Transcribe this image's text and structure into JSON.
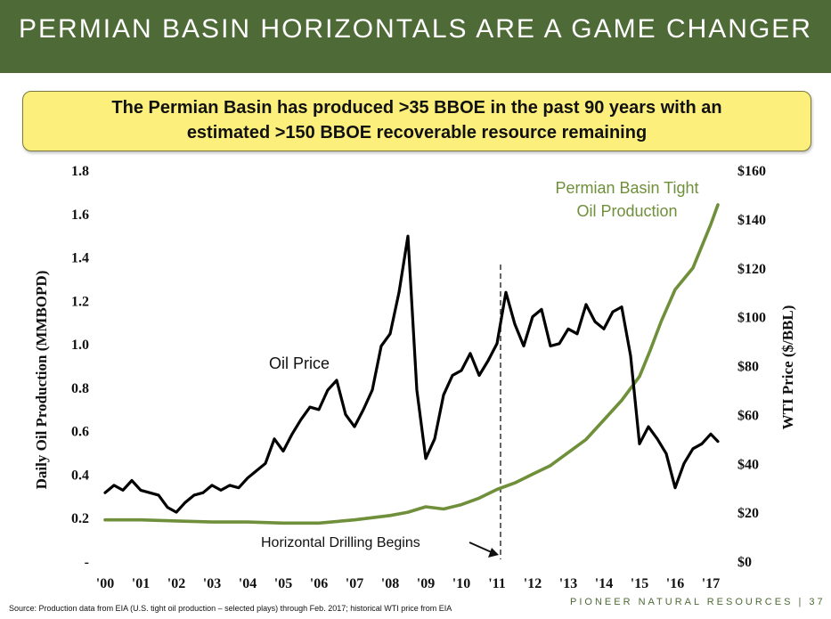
{
  "header": {
    "title": "PERMIAN BASIN HORIZONTALS ARE A GAME CHANGER"
  },
  "callout": {
    "line1": "The Permian Basin has produced >35 BBOE in the past 90 years with an",
    "line2": "estimated >150 BBOE recoverable resource remaining"
  },
  "footer": {
    "source": "Source: Production data from EIA (U.S. tight oil production – selected plays) through Feb. 2017; historical WTI price from EIA",
    "brand": "PIONEER NATURAL RESOURCES | 37"
  },
  "chart_data": {
    "type": "line",
    "ylabel": "Daily Oil Production (MMBOPD)",
    "y2label": "WTI Price ($/BBL)",
    "x_ticks": [
      "'00",
      "'01",
      "'02",
      "'03",
      "'04",
      "'05",
      "'06",
      "'07",
      "'08",
      "'09",
      "'10",
      "'11",
      "'12",
      "'13",
      "'14",
      "'15",
      "'16",
      "'17"
    ],
    "y_ticks": [
      "-",
      "0.2",
      "0.4",
      "0.6",
      "0.8",
      "1.0",
      "1.2",
      "1.4",
      "1.6",
      "1.8"
    ],
    "y2_ticks": [
      "$0",
      "$20",
      "$40",
      "$60",
      "$80",
      "$100",
      "$120",
      "$140",
      "$160"
    ],
    "ylim": [
      0,
      1.8
    ],
    "y2lim": [
      0,
      160
    ],
    "xlim": [
      2000.0,
      2017.25
    ],
    "annotations": {
      "oil_price": "Oil Price",
      "tight_oil": [
        "Permian Basin Tight",
        "Oil Production"
      ],
      "drilling": "Horizontal Drilling Begins"
    },
    "drilling_start_x": 2011.1,
    "series": [
      {
        "name": "Permian Basin Tight Oil Production",
        "axis": "left",
        "color": "#6f8f3a",
        "points": [
          [
            2000.0,
            0.19
          ],
          [
            2001.0,
            0.19
          ],
          [
            2002.0,
            0.185
          ],
          [
            2003.0,
            0.18
          ],
          [
            2004.0,
            0.18
          ],
          [
            2005.0,
            0.175
          ],
          [
            2006.0,
            0.175
          ],
          [
            2007.0,
            0.19
          ],
          [
            2008.0,
            0.21
          ],
          [
            2008.5,
            0.225
          ],
          [
            2009.0,
            0.25
          ],
          [
            2009.5,
            0.24
          ],
          [
            2010.0,
            0.26
          ],
          [
            2010.5,
            0.29
          ],
          [
            2011.0,
            0.33
          ],
          [
            2011.5,
            0.36
          ],
          [
            2012.0,
            0.4
          ],
          [
            2012.5,
            0.44
          ],
          [
            2013.0,
            0.5
          ],
          [
            2013.5,
            0.56
          ],
          [
            2014.0,
            0.65
          ],
          [
            2014.5,
            0.74
          ],
          [
            2015.0,
            0.85
          ],
          [
            2015.3,
            0.97
          ],
          [
            2015.6,
            1.1
          ],
          [
            2016.0,
            1.25
          ],
          [
            2016.5,
            1.35
          ],
          [
            2017.0,
            1.55
          ],
          [
            2017.2,
            1.64
          ]
        ]
      },
      {
        "name": "Oil Price",
        "axis": "right",
        "color": "#000000",
        "points": [
          [
            2000.0,
            28
          ],
          [
            2000.25,
            31
          ],
          [
            2000.5,
            29
          ],
          [
            2000.75,
            33
          ],
          [
            2001.0,
            29
          ],
          [
            2001.25,
            28
          ],
          [
            2001.5,
            27
          ],
          [
            2001.75,
            22
          ],
          [
            2002.0,
            20
          ],
          [
            2002.25,
            24
          ],
          [
            2002.5,
            27
          ],
          [
            2002.75,
            28
          ],
          [
            2003.0,
            31
          ],
          [
            2003.25,
            29
          ],
          [
            2003.5,
            31
          ],
          [
            2003.75,
            30
          ],
          [
            2004.0,
            34
          ],
          [
            2004.25,
            37
          ],
          [
            2004.5,
            40
          ],
          [
            2004.75,
            50
          ],
          [
            2005.0,
            45
          ],
          [
            2005.25,
            52
          ],
          [
            2005.5,
            58
          ],
          [
            2005.75,
            63
          ],
          [
            2006.0,
            62
          ],
          [
            2006.25,
            70
          ],
          [
            2006.5,
            74
          ],
          [
            2006.75,
            60
          ],
          [
            2007.0,
            55
          ],
          [
            2007.25,
            62
          ],
          [
            2007.5,
            70
          ],
          [
            2007.75,
            88
          ],
          [
            2008.0,
            93
          ],
          [
            2008.25,
            110
          ],
          [
            2008.5,
            133
          ],
          [
            2008.75,
            70
          ],
          [
            2009.0,
            42
          ],
          [
            2009.25,
            50
          ],
          [
            2009.5,
            68
          ],
          [
            2009.75,
            76
          ],
          [
            2010.0,
            78
          ],
          [
            2010.25,
            85
          ],
          [
            2010.5,
            76
          ],
          [
            2010.75,
            82
          ],
          [
            2011.0,
            89
          ],
          [
            2011.25,
            110
          ],
          [
            2011.5,
            97
          ],
          [
            2011.75,
            88
          ],
          [
            2012.0,
            100
          ],
          [
            2012.25,
            103
          ],
          [
            2012.5,
            88
          ],
          [
            2012.75,
            89
          ],
          [
            2013.0,
            95
          ],
          [
            2013.25,
            93
          ],
          [
            2013.5,
            105
          ],
          [
            2013.75,
            98
          ],
          [
            2014.0,
            95
          ],
          [
            2014.25,
            102
          ],
          [
            2014.5,
            104
          ],
          [
            2014.75,
            84
          ],
          [
            2015.0,
            48
          ],
          [
            2015.25,
            55
          ],
          [
            2015.5,
            50
          ],
          [
            2015.75,
            44
          ],
          [
            2016.0,
            30
          ],
          [
            2016.25,
            40
          ],
          [
            2016.5,
            46
          ],
          [
            2016.75,
            48
          ],
          [
            2017.0,
            52
          ],
          [
            2017.2,
            49
          ]
        ]
      }
    ]
  }
}
